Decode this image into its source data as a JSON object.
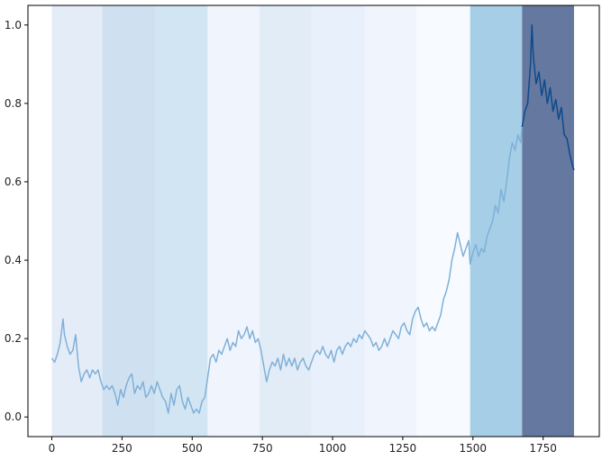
{
  "chart_data": {
    "type": "line",
    "title": "",
    "xlabel": "",
    "ylabel": "",
    "xlim": [
      -85,
      1950
    ],
    "ylim": [
      -0.05,
      1.05
    ],
    "x_ticks": [
      0,
      250,
      500,
      750,
      1000,
      1250,
      1500,
      1750
    ],
    "x_tick_labels": [
      "0",
      "250",
      "500",
      "750",
      "1000",
      "1250",
      "1500",
      "1750"
    ],
    "y_ticks": [
      0.0,
      0.2,
      0.4,
      0.6,
      0.8,
      1.0
    ],
    "y_tick_labels": [
      "0.0",
      "0.2",
      "0.4",
      "0.6",
      "0.8",
      "1.0"
    ],
    "grid": false,
    "legend": "none",
    "regimes": [
      {
        "x_start": 0,
        "x_end": 180,
        "color": "#e4ecf8"
      },
      {
        "x_start": 180,
        "x_end": 370,
        "color": "#cfe1f1"
      },
      {
        "x_start": 370,
        "x_end": 555,
        "color": "#d2e5f2"
      },
      {
        "x_start": 555,
        "x_end": 740,
        "color": "#f0f5fd"
      },
      {
        "x_start": 740,
        "x_end": 925,
        "color": "#e2ecf7"
      },
      {
        "x_start": 925,
        "x_end": 1115,
        "color": "#e8f0fb"
      },
      {
        "x_start": 1115,
        "x_end": 1300,
        "color": "#f0f5fd"
      },
      {
        "x_start": 1300,
        "x_end": 1490,
        "color": "#f7fafe"
      },
      {
        "x_start": 1490,
        "x_end": 1675,
        "color": "#a6cee6"
      },
      {
        "x_start": 1675,
        "x_end": 1860,
        "color": "#65789f"
      }
    ],
    "series": [
      {
        "color": "#7fb0d8",
        "accent_color": "#0d4a8c",
        "points": [
          [
            0,
            0.15
          ],
          [
            10,
            0.14
          ],
          [
            20,
            0.16
          ],
          [
            30,
            0.19
          ],
          [
            40,
            0.25
          ],
          [
            45,
            0.21
          ],
          [
            55,
            0.18
          ],
          [
            65,
            0.16
          ],
          [
            75,
            0.17
          ],
          [
            85,
            0.21
          ],
          [
            95,
            0.13
          ],
          [
            105,
            0.09
          ],
          [
            115,
            0.11
          ],
          [
            125,
            0.12
          ],
          [
            135,
            0.1
          ],
          [
            145,
            0.12
          ],
          [
            155,
            0.11
          ],
          [
            165,
            0.12
          ],
          [
            175,
            0.09
          ],
          [
            185,
            0.07
          ],
          [
            195,
            0.08
          ],
          [
            205,
            0.07
          ],
          [
            215,
            0.08
          ],
          [
            225,
            0.06
          ],
          [
            235,
            0.03
          ],
          [
            245,
            0.07
          ],
          [
            255,
            0.05
          ],
          [
            265,
            0.08
          ],
          [
            275,
            0.1
          ],
          [
            285,
            0.11
          ],
          [
            295,
            0.06
          ],
          [
            305,
            0.08
          ],
          [
            315,
            0.07
          ],
          [
            325,
            0.09
          ],
          [
            335,
            0.05
          ],
          [
            345,
            0.06
          ],
          [
            355,
            0.08
          ],
          [
            365,
            0.06
          ],
          [
            375,
            0.09
          ],
          [
            385,
            0.07
          ],
          [
            395,
            0.05
          ],
          [
            405,
            0.04
          ],
          [
            415,
            0.01
          ],
          [
            425,
            0.06
          ],
          [
            435,
            0.03
          ],
          [
            445,
            0.07
          ],
          [
            455,
            0.08
          ],
          [
            465,
            0.04
          ],
          [
            475,
            0.02
          ],
          [
            485,
            0.05
          ],
          [
            495,
            0.03
          ],
          [
            505,
            0.01
          ],
          [
            515,
            0.02
          ],
          [
            525,
            0.01
          ],
          [
            535,
            0.04
          ],
          [
            545,
            0.05
          ],
          [
            555,
            0.1
          ],
          [
            565,
            0.15
          ],
          [
            575,
            0.16
          ],
          [
            585,
            0.14
          ],
          [
            595,
            0.17
          ],
          [
            605,
            0.16
          ],
          [
            615,
            0.18
          ],
          [
            625,
            0.2
          ],
          [
            635,
            0.17
          ],
          [
            645,
            0.19
          ],
          [
            655,
            0.18
          ],
          [
            665,
            0.22
          ],
          [
            675,
            0.2
          ],
          [
            685,
            0.21
          ],
          [
            695,
            0.23
          ],
          [
            705,
            0.2
          ],
          [
            715,
            0.22
          ],
          [
            725,
            0.19
          ],
          [
            735,
            0.2
          ],
          [
            745,
            0.17
          ],
          [
            755,
            0.13
          ],
          [
            765,
            0.09
          ],
          [
            775,
            0.12
          ],
          [
            785,
            0.14
          ],
          [
            795,
            0.13
          ],
          [
            805,
            0.15
          ],
          [
            815,
            0.12
          ],
          [
            825,
            0.16
          ],
          [
            835,
            0.13
          ],
          [
            845,
            0.15
          ],
          [
            855,
            0.13
          ],
          [
            865,
            0.15
          ],
          [
            875,
            0.12
          ],
          [
            885,
            0.14
          ],
          [
            895,
            0.15
          ],
          [
            905,
            0.13
          ],
          [
            915,
            0.12
          ],
          [
            925,
            0.14
          ],
          [
            935,
            0.16
          ],
          [
            945,
            0.17
          ],
          [
            955,
            0.16
          ],
          [
            965,
            0.18
          ],
          [
            975,
            0.16
          ],
          [
            985,
            0.15
          ],
          [
            995,
            0.17
          ],
          [
            1005,
            0.14
          ],
          [
            1015,
            0.17
          ],
          [
            1025,
            0.18
          ],
          [
            1035,
            0.16
          ],
          [
            1045,
            0.18
          ],
          [
            1055,
            0.19
          ],
          [
            1065,
            0.18
          ],
          [
            1075,
            0.2
          ],
          [
            1085,
            0.19
          ],
          [
            1095,
            0.21
          ],
          [
            1105,
            0.2
          ],
          [
            1115,
            0.22
          ],
          [
            1125,
            0.21
          ],
          [
            1135,
            0.2
          ],
          [
            1145,
            0.18
          ],
          [
            1155,
            0.19
          ],
          [
            1165,
            0.17
          ],
          [
            1175,
            0.18
          ],
          [
            1185,
            0.2
          ],
          [
            1195,
            0.18
          ],
          [
            1205,
            0.2
          ],
          [
            1215,
            0.22
          ],
          [
            1225,
            0.21
          ],
          [
            1235,
            0.2
          ],
          [
            1245,
            0.23
          ],
          [
            1255,
            0.24
          ],
          [
            1265,
            0.22
          ],
          [
            1275,
            0.21
          ],
          [
            1285,
            0.25
          ],
          [
            1295,
            0.27
          ],
          [
            1305,
            0.28
          ],
          [
            1315,
            0.25
          ],
          [
            1325,
            0.23
          ],
          [
            1335,
            0.24
          ],
          [
            1345,
            0.22
          ],
          [
            1355,
            0.23
          ],
          [
            1365,
            0.22
          ],
          [
            1375,
            0.24
          ],
          [
            1385,
            0.26
          ],
          [
            1395,
            0.3
          ],
          [
            1405,
            0.32
          ],
          [
            1415,
            0.35
          ],
          [
            1425,
            0.4
          ],
          [
            1435,
            0.43
          ],
          [
            1445,
            0.47
          ],
          [
            1455,
            0.44
          ],
          [
            1465,
            0.41
          ],
          [
            1475,
            0.43
          ],
          [
            1485,
            0.45
          ],
          [
            1490,
            0.39
          ],
          [
            1500,
            0.42
          ],
          [
            1510,
            0.44
          ],
          [
            1520,
            0.41
          ],
          [
            1530,
            0.43
          ],
          [
            1540,
            0.42
          ],
          [
            1550,
            0.46
          ],
          [
            1560,
            0.48
          ],
          [
            1570,
            0.5
          ],
          [
            1580,
            0.54
          ],
          [
            1590,
            0.52
          ],
          [
            1600,
            0.58
          ],
          [
            1610,
            0.55
          ],
          [
            1620,
            0.6
          ],
          [
            1630,
            0.66
          ],
          [
            1640,
            0.7
          ],
          [
            1650,
            0.68
          ],
          [
            1660,
            0.72
          ],
          [
            1670,
            0.7
          ],
          [
            1675,
            0.74
          ],
          [
            1685,
            0.78
          ],
          [
            1695,
            0.8
          ],
          [
            1705,
            0.9
          ],
          [
            1710,
            1.0
          ],
          [
            1715,
            0.92
          ],
          [
            1725,
            0.85
          ],
          [
            1735,
            0.88
          ],
          [
            1745,
            0.82
          ],
          [
            1755,
            0.86
          ],
          [
            1765,
            0.8
          ],
          [
            1775,
            0.84
          ],
          [
            1785,
            0.78
          ],
          [
            1795,
            0.81
          ],
          [
            1805,
            0.76
          ],
          [
            1815,
            0.79
          ],
          [
            1825,
            0.72
          ],
          [
            1835,
            0.71
          ],
          [
            1845,
            0.67
          ],
          [
            1855,
            0.64
          ],
          [
            1860,
            0.63
          ]
        ]
      }
    ]
  }
}
